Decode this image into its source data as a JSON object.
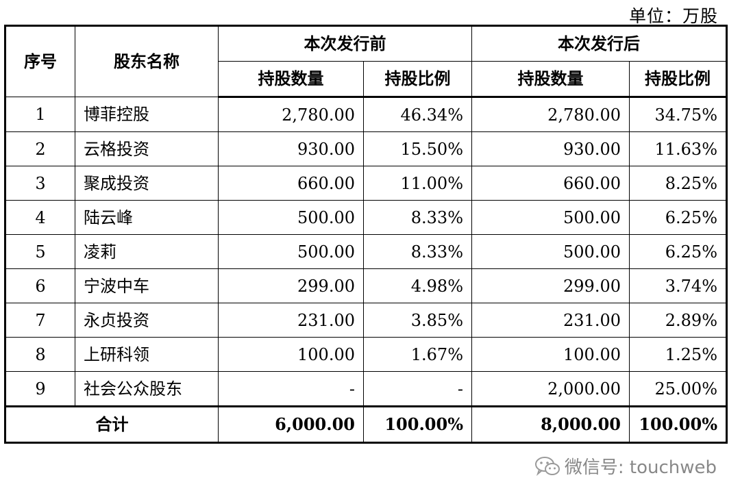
{
  "unit_note": "单位：万股",
  "header": {
    "seq": "序号",
    "name": "股东名称",
    "before_group": "本次发行前",
    "after_group": "本次发行后",
    "shares": "持股数量",
    "ratio": "持股比例"
  },
  "rows": [
    {
      "no": "1",
      "name": "博菲控股",
      "before_shares": "2,780.00",
      "before_ratio": "46.34%",
      "after_shares": "2,780.00",
      "after_ratio": "34.75%"
    },
    {
      "no": "2",
      "name": "云格投资",
      "before_shares": "930.00",
      "before_ratio": "15.50%",
      "after_shares": "930.00",
      "after_ratio": "11.63%"
    },
    {
      "no": "3",
      "name": "聚成投资",
      "before_shares": "660.00",
      "before_ratio": "11.00%",
      "after_shares": "660.00",
      "after_ratio": "8.25%"
    },
    {
      "no": "4",
      "name": "陆云峰",
      "before_shares": "500.00",
      "before_ratio": "8.33%",
      "after_shares": "500.00",
      "after_ratio": "6.25%"
    },
    {
      "no": "5",
      "name": "凌莉",
      "before_shares": "500.00",
      "before_ratio": "8.33%",
      "after_shares": "500.00",
      "after_ratio": "6.25%"
    },
    {
      "no": "6",
      "name": "宁波中车",
      "before_shares": "299.00",
      "before_ratio": "4.98%",
      "after_shares": "299.00",
      "after_ratio": "3.74%"
    },
    {
      "no": "7",
      "name": "永贞投资",
      "before_shares": "231.00",
      "before_ratio": "3.85%",
      "after_shares": "231.00",
      "after_ratio": "2.89%"
    },
    {
      "no": "8",
      "name": "上研科领",
      "before_shares": "100.00",
      "before_ratio": "1.67%",
      "after_shares": "100.00",
      "after_ratio": "1.25%"
    },
    {
      "no": "9",
      "name": "社会公众股东",
      "before_shares": "-",
      "before_ratio": "-",
      "after_shares": "2,000.00",
      "after_ratio": "25.00%"
    }
  ],
  "total": {
    "label": "合计",
    "before_shares": "6,000.00",
    "before_ratio": "100.00%",
    "after_shares": "8,000.00",
    "after_ratio": "100.00%"
  },
  "watermark": {
    "icon": "wechat-icon",
    "text": "微信号: touchweb"
  }
}
